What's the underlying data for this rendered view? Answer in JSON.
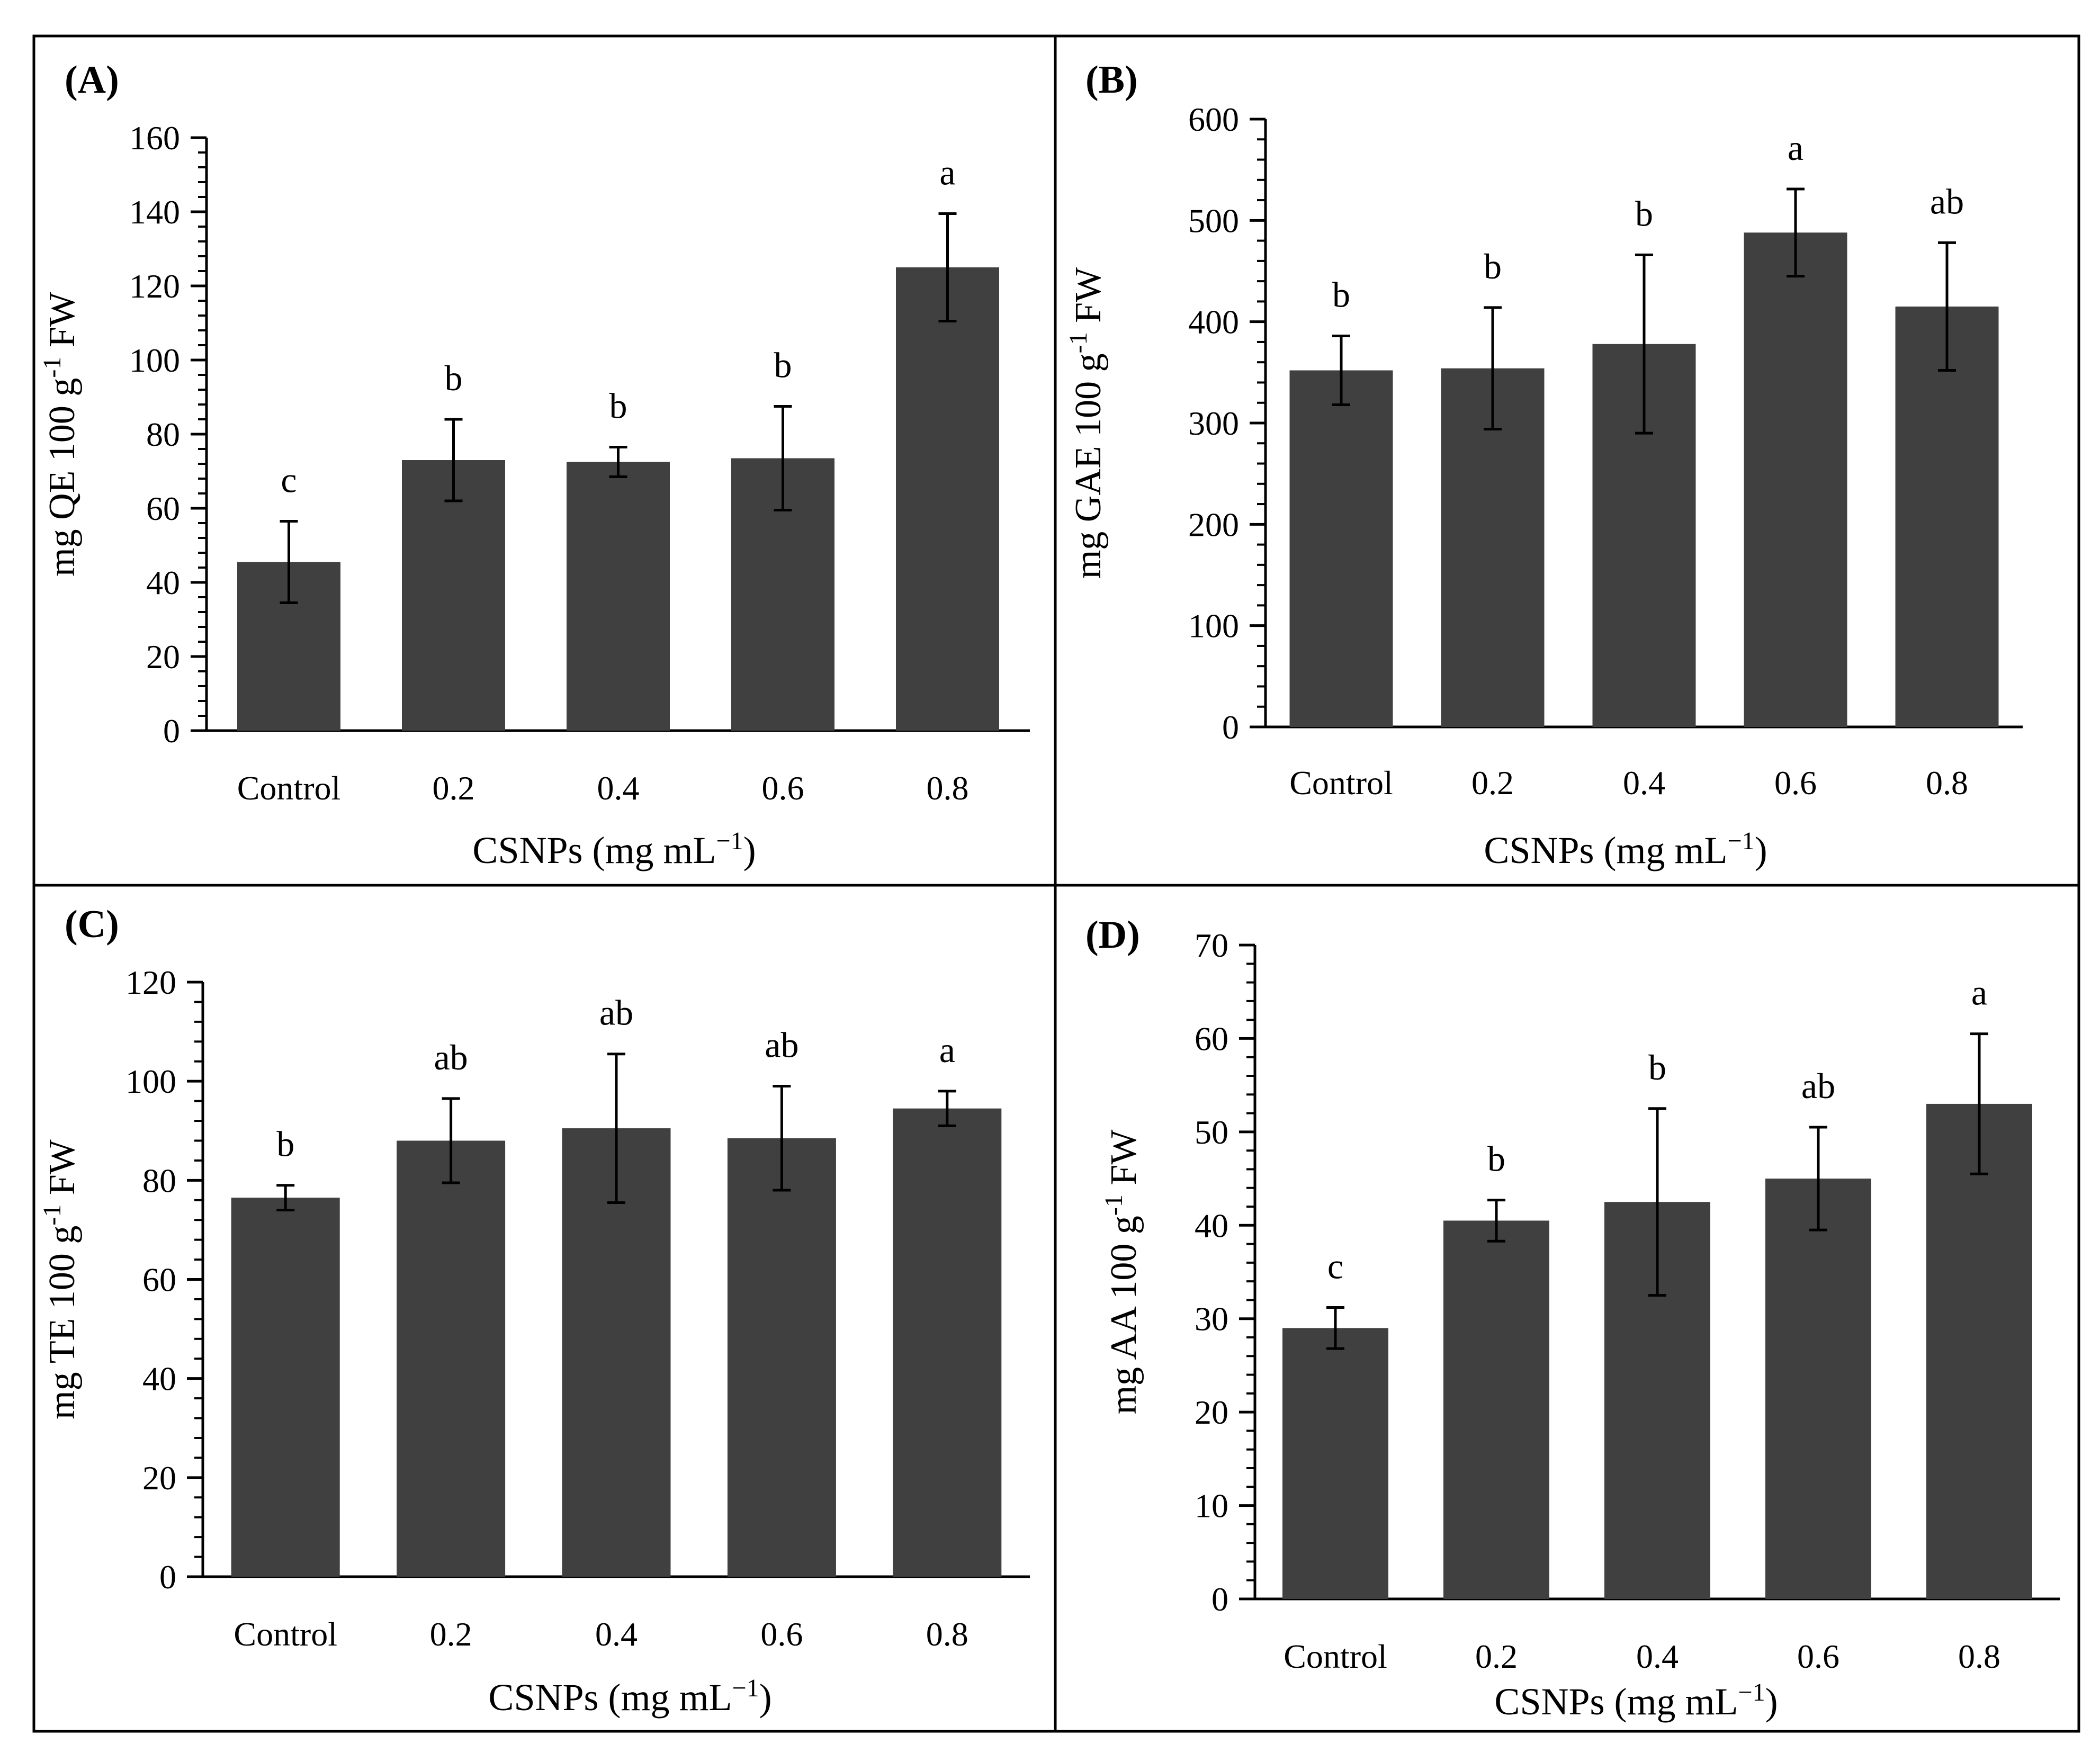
{
  "colors": {
    "bar": "#404040",
    "axis": "#000000",
    "frame": "#000000",
    "background": "#ffffff"
  },
  "chart_data": [
    {
      "panel_label": "(A)",
      "type": "bar",
      "categories": [
        "Control",
        "0.2",
        "0.4",
        "0.6",
        "0.8"
      ],
      "values": [
        45.5,
        73,
        72.5,
        73.5,
        125
      ],
      "errors": [
        11,
        11,
        4,
        14,
        14.5
      ],
      "letters": [
        "c",
        "b",
        "b",
        "b",
        "a"
      ],
      "ylim": [
        0,
        160
      ],
      "ytick_step": 20,
      "yticks": [
        "0",
        "20",
        "40",
        "60",
        "80",
        "100",
        "120",
        "140",
        "160"
      ],
      "ylabel": {
        "pre": "mg QE 100 g",
        "sup": "-1",
        "post": " FW"
      },
      "xlabel": {
        "pre": "CSNPs (mg mL",
        "sup": "−1",
        "post": ")"
      },
      "grid": false,
      "legend": "none"
    },
    {
      "panel_label": "(B)",
      "type": "bar",
      "categories": [
        "Control",
        "0.2",
        "0.4",
        "0.6",
        "0.8"
      ],
      "values": [
        352,
        354,
        378,
        488,
        415
      ],
      "errors": [
        34,
        60,
        88,
        43,
        63
      ],
      "letters": [
        "b",
        "b",
        "b",
        "a",
        "ab"
      ],
      "ylim": [
        0,
        600
      ],
      "ytick_step": 100,
      "yticks": [
        "0",
        "100",
        "200",
        "300",
        "400",
        "500",
        "600"
      ],
      "ylabel": {
        "pre": "mg GAE 100 g",
        "sup": "-1",
        "post": "  FW"
      },
      "xlabel": {
        "pre": "CSNPs (mg mL",
        "sup": "−1",
        "post": ")"
      },
      "grid": false,
      "legend": "none"
    },
    {
      "panel_label": "(C)",
      "type": "bar",
      "categories": [
        "Control",
        "0.2",
        "0.4",
        "0.6",
        "0.8"
      ],
      "values": [
        76.5,
        88,
        90.5,
        88.5,
        94.5
      ],
      "errors": [
        2.5,
        8.5,
        15,
        10.5,
        3.5
      ],
      "letters": [
        "b",
        "ab",
        "ab",
        "ab",
        "a"
      ],
      "ylim": [
        0,
        120
      ],
      "ytick_step": 20,
      "yticks": [
        "0",
        "20",
        "40",
        "60",
        "80",
        "100",
        "120"
      ],
      "ylabel": {
        "pre": "mg TE 100 g",
        "sup": "-1",
        "post": "  FW"
      },
      "xlabel": {
        "pre": "CSNPs (mg mL",
        "sup": "−1",
        "post": ")"
      },
      "grid": false,
      "legend": "none"
    },
    {
      "panel_label": "(D)",
      "type": "bar",
      "categories": [
        "Control",
        "0.2",
        "0.4",
        "0.6",
        "0.8"
      ],
      "values": [
        29,
        40.5,
        42.5,
        45,
        53
      ],
      "errors": [
        2.2,
        2.2,
        10,
        5.5,
        7.5
      ],
      "letters": [
        "c",
        "b",
        "b",
        "ab",
        "a"
      ],
      "ylim": [
        0,
        70
      ],
      "ytick_step": 10,
      "yticks": [
        "0",
        "10",
        "20",
        "30",
        "40",
        "50",
        "60",
        "70"
      ],
      "ylabel": {
        "pre": "mg AA 100 g",
        "sup": "-1",
        "post": " FW"
      },
      "xlabel": {
        "pre": "CSNPs (mg mL",
        "sup": "−1",
        "post": ")"
      },
      "grid": false,
      "legend": "none"
    }
  ]
}
